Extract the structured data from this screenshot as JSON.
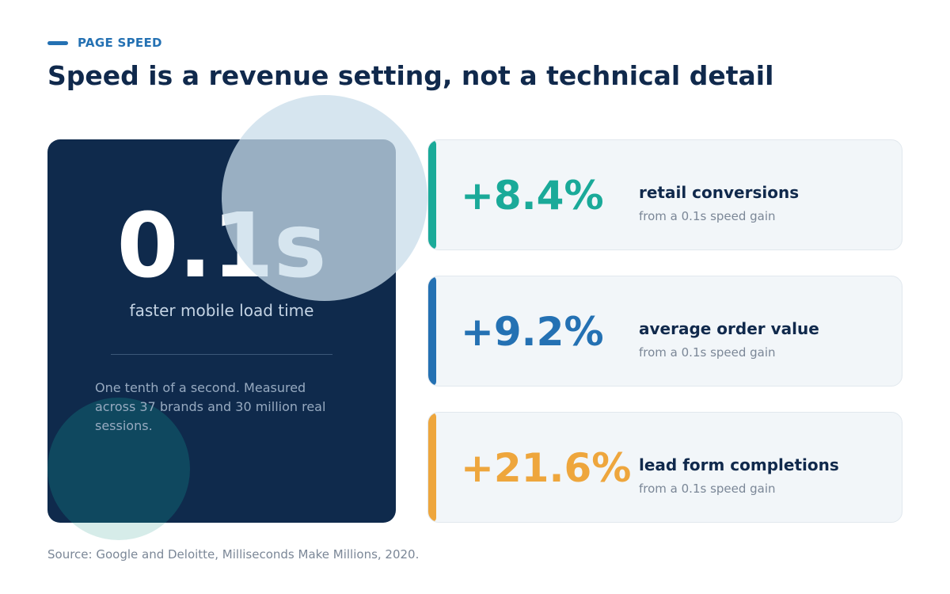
{
  "header": {
    "eyebrow": "PAGE SPEED",
    "title": "Speed is a revenue setting, not a technical detail"
  },
  "hero": {
    "value": "0.1s",
    "caption": "faster mobile load time",
    "note": "One tenth of a second. Measured across 37 brands and 30 million real sessions."
  },
  "stats": [
    {
      "value": "+8.4%",
      "label": "retail conversions",
      "sub": "from a 0.1s speed gain",
      "color": "#1aaa99"
    },
    {
      "value": "+9.2%",
      "label": "average order value",
      "sub": "from a 0.1s speed gain",
      "color": "#2471b3"
    },
    {
      "value": "+21.6%",
      "label": "lead form completions",
      "sub": "from a 0.1s speed gain",
      "color": "#eea63d"
    }
  ],
  "source": "Source: Google and Deloitte, Milliseconds Make Millions, 2020.",
  "colors": {
    "accent": "#2471b3",
    "navy": "#0f2a4c",
    "teal": "#1aaa99",
    "orange": "#eea63d"
  }
}
